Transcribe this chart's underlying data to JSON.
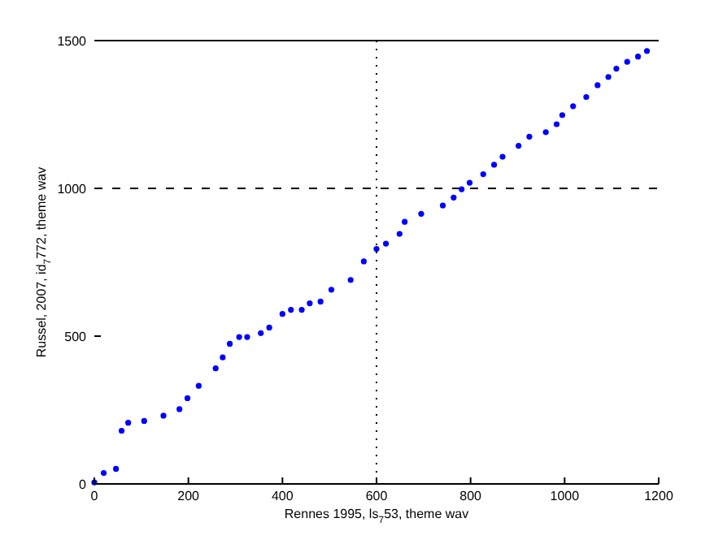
{
  "chart_data": {
    "type": "scatter",
    "xlabel": "Rennes 1995, ls$_{7}$53, theme wav",
    "ylabel": "Russel, 2007, id$_{7}$772, theme wav",
    "x": [
      0,
      20,
      46,
      58,
      72,
      106,
      147,
      181,
      198,
      222,
      258,
      273,
      288,
      308,
      325,
      354,
      372,
      400,
      418,
      441,
      458,
      481,
      504,
      545,
      573,
      600,
      620,
      649,
      660,
      695,
      741,
      764,
      781,
      798,
      827,
      850,
      868,
      902,
      925,
      960,
      983,
      995,
      1018,
      1046,
      1070,
      1093,
      1110,
      1133,
      1156,
      1175
    ],
    "series": [
      {
        "color": "#0000ff",
        "values": [
          5,
          37,
          51,
          180,
          207,
          213,
          231,
          253,
          290,
          332,
          391,
          428,
          474,
          497,
          497,
          510,
          529,
          575,
          589,
          589,
          611,
          617,
          657,
          690,
          753,
          795,
          813,
          846,
          887,
          914,
          942,
          969,
          997,
          1019,
          1048,
          1080,
          1107,
          1144,
          1175,
          1190,
          1217,
          1248,
          1278,
          1309,
          1349,
          1377,
          1405,
          1428,
          1446,
          1465
        ]
      }
    ],
    "xlim": [
      0,
      1200
    ],
    "ylim": [
      0,
      1500
    ],
    "xticks": [
      0,
      200,
      400,
      600,
      800,
      1000,
      1200
    ],
    "yticks": [
      0,
      500,
      1000,
      1500
    ],
    "marker": "circle",
    "grid": false,
    "ref_lines": [
      {
        "axis": "x",
        "value": 600,
        "line_style": "dotted"
      },
      {
        "axis": "y",
        "value": 1000,
        "line_style": "dashed"
      }
    ]
  }
}
